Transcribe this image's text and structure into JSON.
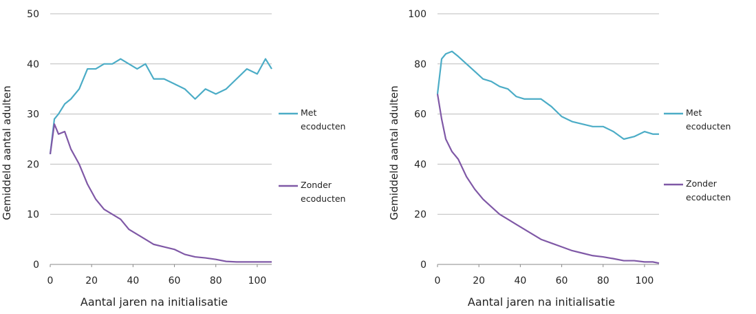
{
  "chart_data": [
    {
      "type": "line",
      "x_label": "Aantal jaren na initialisatie",
      "y_label": "Gemiddeld aantal adulten",
      "x": [
        0,
        2,
        4,
        7,
        10,
        14,
        18,
        22,
        26,
        30,
        34,
        38,
        42,
        46,
        50,
        55,
        60,
        65,
        70,
        75,
        80,
        85,
        90,
        95,
        100,
        104,
        107
      ],
      "series": [
        {
          "name": "Met ecoducten",
          "color": "#4bacc6",
          "values": [
            22,
            29,
            30,
            32,
            33,
            35,
            39,
            39,
            40,
            40,
            41,
            40,
            39,
            40,
            37,
            37,
            36,
            35,
            33,
            35,
            34,
            35,
            37,
            39,
            38,
            41,
            39
          ]
        },
        {
          "name": "Zonder ecoducten",
          "color": "#7f58a6",
          "values": [
            22,
            28,
            26,
            26.5,
            23,
            20,
            16,
            13,
            11,
            10,
            9,
            7,
            6,
            5,
            4,
            3.5,
            3,
            2,
            1.5,
            1.3,
            1,
            0.6,
            0.5,
            0.5,
            0.5,
            0.5,
            0.5
          ]
        }
      ],
      "xlim": [
        0,
        107
      ],
      "ylim": [
        0,
        50
      ],
      "xticks": [
        0,
        20,
        40,
        60,
        80,
        100
      ],
      "yticks": [
        0,
        10,
        20,
        30,
        40,
        50
      ],
      "grid": true
    },
    {
      "type": "line",
      "x_label": "Aantal jaren na initialisatie",
      "y_label": "Gemiddeld aantal adulten",
      "x": [
        0,
        2,
        4,
        7,
        10,
        14,
        18,
        22,
        26,
        30,
        34,
        38,
        42,
        46,
        50,
        55,
        60,
        65,
        70,
        75,
        80,
        85,
        90,
        95,
        100,
        104,
        107
      ],
      "series": [
        {
          "name": "Met ecoducten",
          "color": "#4bacc6",
          "values": [
            68,
            82,
            84,
            85,
            83,
            80,
            77,
            74,
            73,
            71,
            70,
            67,
            66,
            66,
            66,
            63,
            59,
            57,
            56,
            55,
            55,
            53,
            50,
            51,
            53,
            52,
            52
          ]
        },
        {
          "name": "Zonder ecoducten",
          "color": "#7f58a6",
          "values": [
            68,
            58,
            50,
            45,
            42,
            35,
            30,
            26,
            23,
            20,
            18,
            16,
            14,
            12,
            10,
            8.5,
            7,
            5.5,
            4.5,
            3.5,
            3,
            2.3,
            1.5,
            1.5,
            1,
            1,
            0.5
          ]
        }
      ],
      "xlim": [
        0,
        107
      ],
      "ylim": [
        0,
        100
      ],
      "xticks": [
        0,
        20,
        40,
        60,
        80,
        100
      ],
      "yticks": [
        0,
        20,
        40,
        60,
        80,
        100
      ],
      "grid": true
    }
  ]
}
